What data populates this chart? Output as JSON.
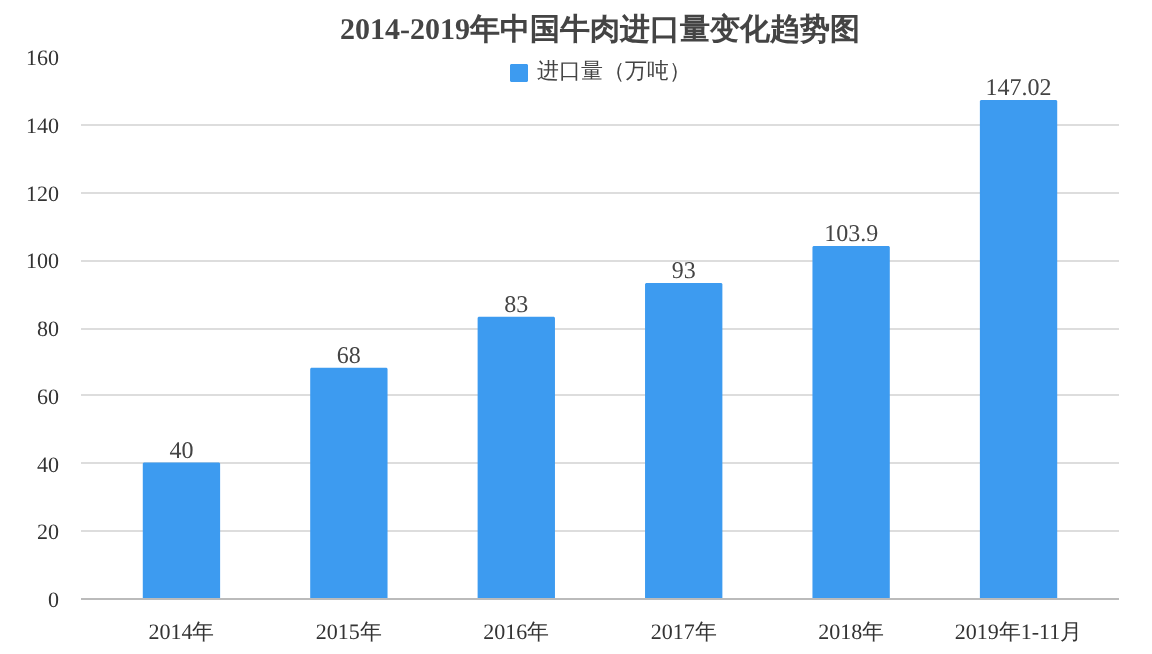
{
  "chart_data": {
    "type": "bar",
    "title": "2014-2019年中国牛肉进口量变化趋势图",
    "categories": [
      "2014年",
      "2015年",
      "2016年",
      "2017年",
      "2018年",
      "2019年1-11月"
    ],
    "series": [
      {
        "name": "进口量（万吨）",
        "color": "#3d9bf0",
        "values": [
          40,
          68,
          83,
          93,
          103.9,
          147.02
        ]
      }
    ],
    "ylim": [
      0,
      160
    ],
    "yticks": [
      0,
      20,
      40,
      60,
      80,
      100,
      120,
      140,
      160
    ],
    "grid": "y",
    "legend": "top",
    "data_labels": true
  }
}
